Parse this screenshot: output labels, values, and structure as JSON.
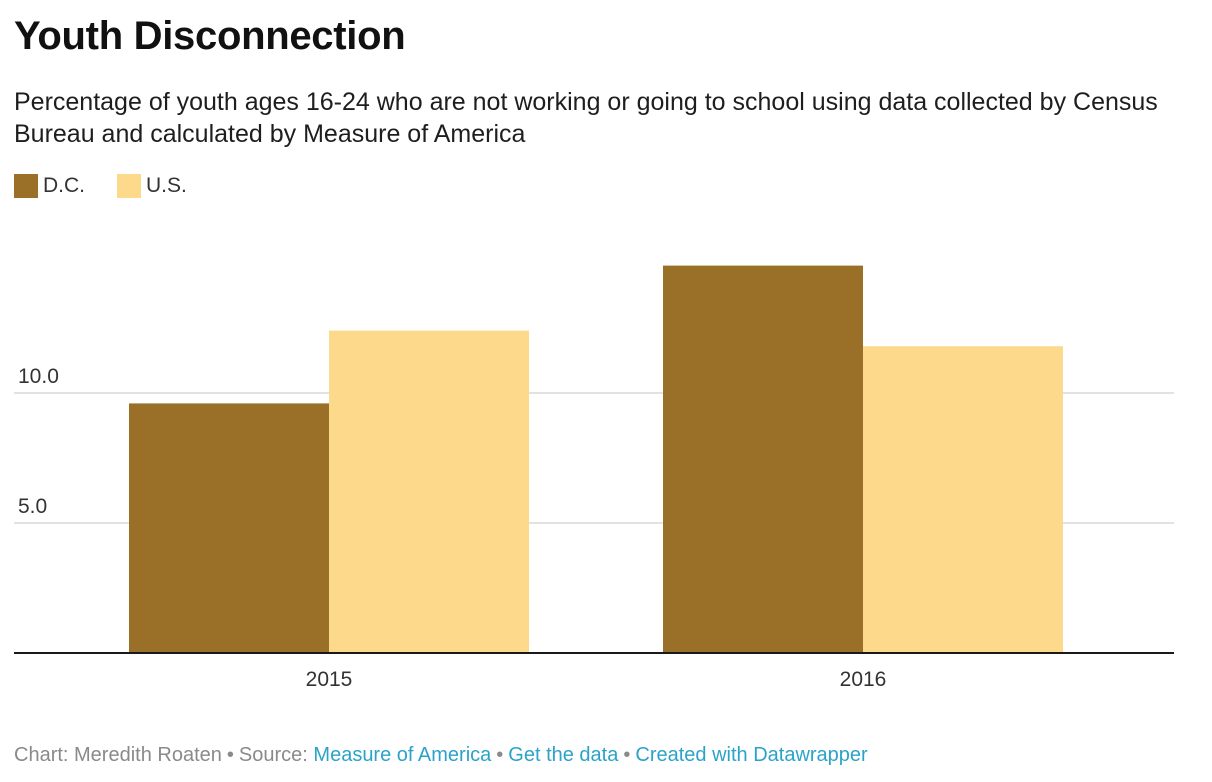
{
  "chart_data": {
    "type": "bar",
    "title": "Youth Disconnection",
    "subtitle": "Percentage of youth ages 16-24 who are not working or going to school using data collected by Census Bureau and calculated by Measure of America",
    "categories": [
      "2015",
      "2016"
    ],
    "series": [
      {
        "name": "D.C.",
        "color": "#9a7028",
        "values": [
          9.6,
          14.9
        ]
      },
      {
        "name": "U.S.",
        "color": "#fdd98c",
        "values": [
          12.4,
          11.8
        ]
      }
    ],
    "yticks": [
      5.0,
      10.0
    ],
    "ytick_labels": [
      "5.0",
      "10.0"
    ],
    "ylim": [
      0,
      15
    ],
    "grid": true,
    "legend_position": "top-left"
  },
  "footer": {
    "chart_credit": "Chart: Meredith Roaten",
    "source_label": "Source:",
    "source_link": "Measure of America",
    "get_data": "Get the data",
    "created_with": "Created with Datawrapper"
  },
  "colors": {
    "gridline": "#d9d9d9",
    "baseline": "#1a1a1a",
    "link": "#2ba3c9"
  }
}
